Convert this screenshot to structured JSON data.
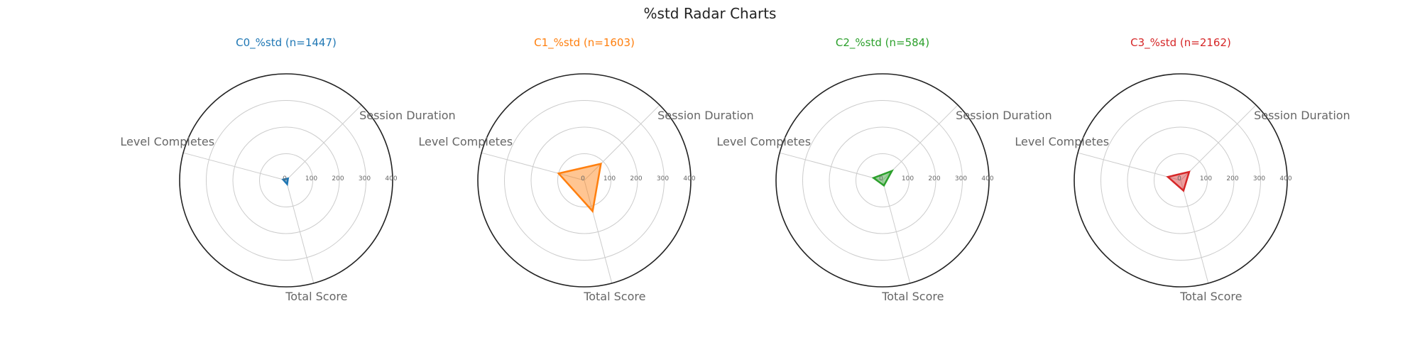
{
  "figure": {
    "title": "%std Radar Charts"
  },
  "chart_data": [
    {
      "type": "radar",
      "title": "C0_%std (n=1447)",
      "color": "#1f77b4",
      "axes": [
        "Session Duration",
        "Total Score",
        "Level Completes"
      ],
      "angles_deg": [
        45,
        165,
        285
      ],
      "rlim": [
        0,
        400
      ],
      "rticks": [
        0,
        100,
        200,
        300,
        400
      ],
      "grid": true,
      "values": [
        10,
        15,
        12
      ]
    },
    {
      "type": "radar",
      "title": "C1_%std (n=1603)",
      "color": "#ff7f0e",
      "axes": [
        "Session Duration",
        "Total Score",
        "Level Completes"
      ],
      "angles_deg": [
        45,
        165,
        285
      ],
      "rlim": [
        0,
        400
      ],
      "rticks": [
        0,
        100,
        200,
        300,
        400
      ],
      "grid": true,
      "values": [
        88,
        120,
        100
      ]
    },
    {
      "type": "radar",
      "title": "C2_%std (n=584)",
      "color": "#2ca02c",
      "axes": [
        "Session Duration",
        "Total Score",
        "Level Completes"
      ],
      "angles_deg": [
        45,
        165,
        285
      ],
      "rlim": [
        0,
        400
      ],
      "rticks": [
        0,
        100,
        200,
        300,
        400
      ],
      "grid": true,
      "values": [
        50,
        20,
        35
      ]
    },
    {
      "type": "radar",
      "title": "C3_%std (n=2162)",
      "color": "#d62728",
      "axes": [
        "Session Duration",
        "Total Score",
        "Level Completes"
      ],
      "angles_deg": [
        45,
        165,
        285
      ],
      "rlim": [
        0,
        400
      ],
      "rticks": [
        0,
        100,
        200,
        300,
        400
      ],
      "grid": true,
      "values": [
        45,
        40,
        50
      ]
    }
  ]
}
